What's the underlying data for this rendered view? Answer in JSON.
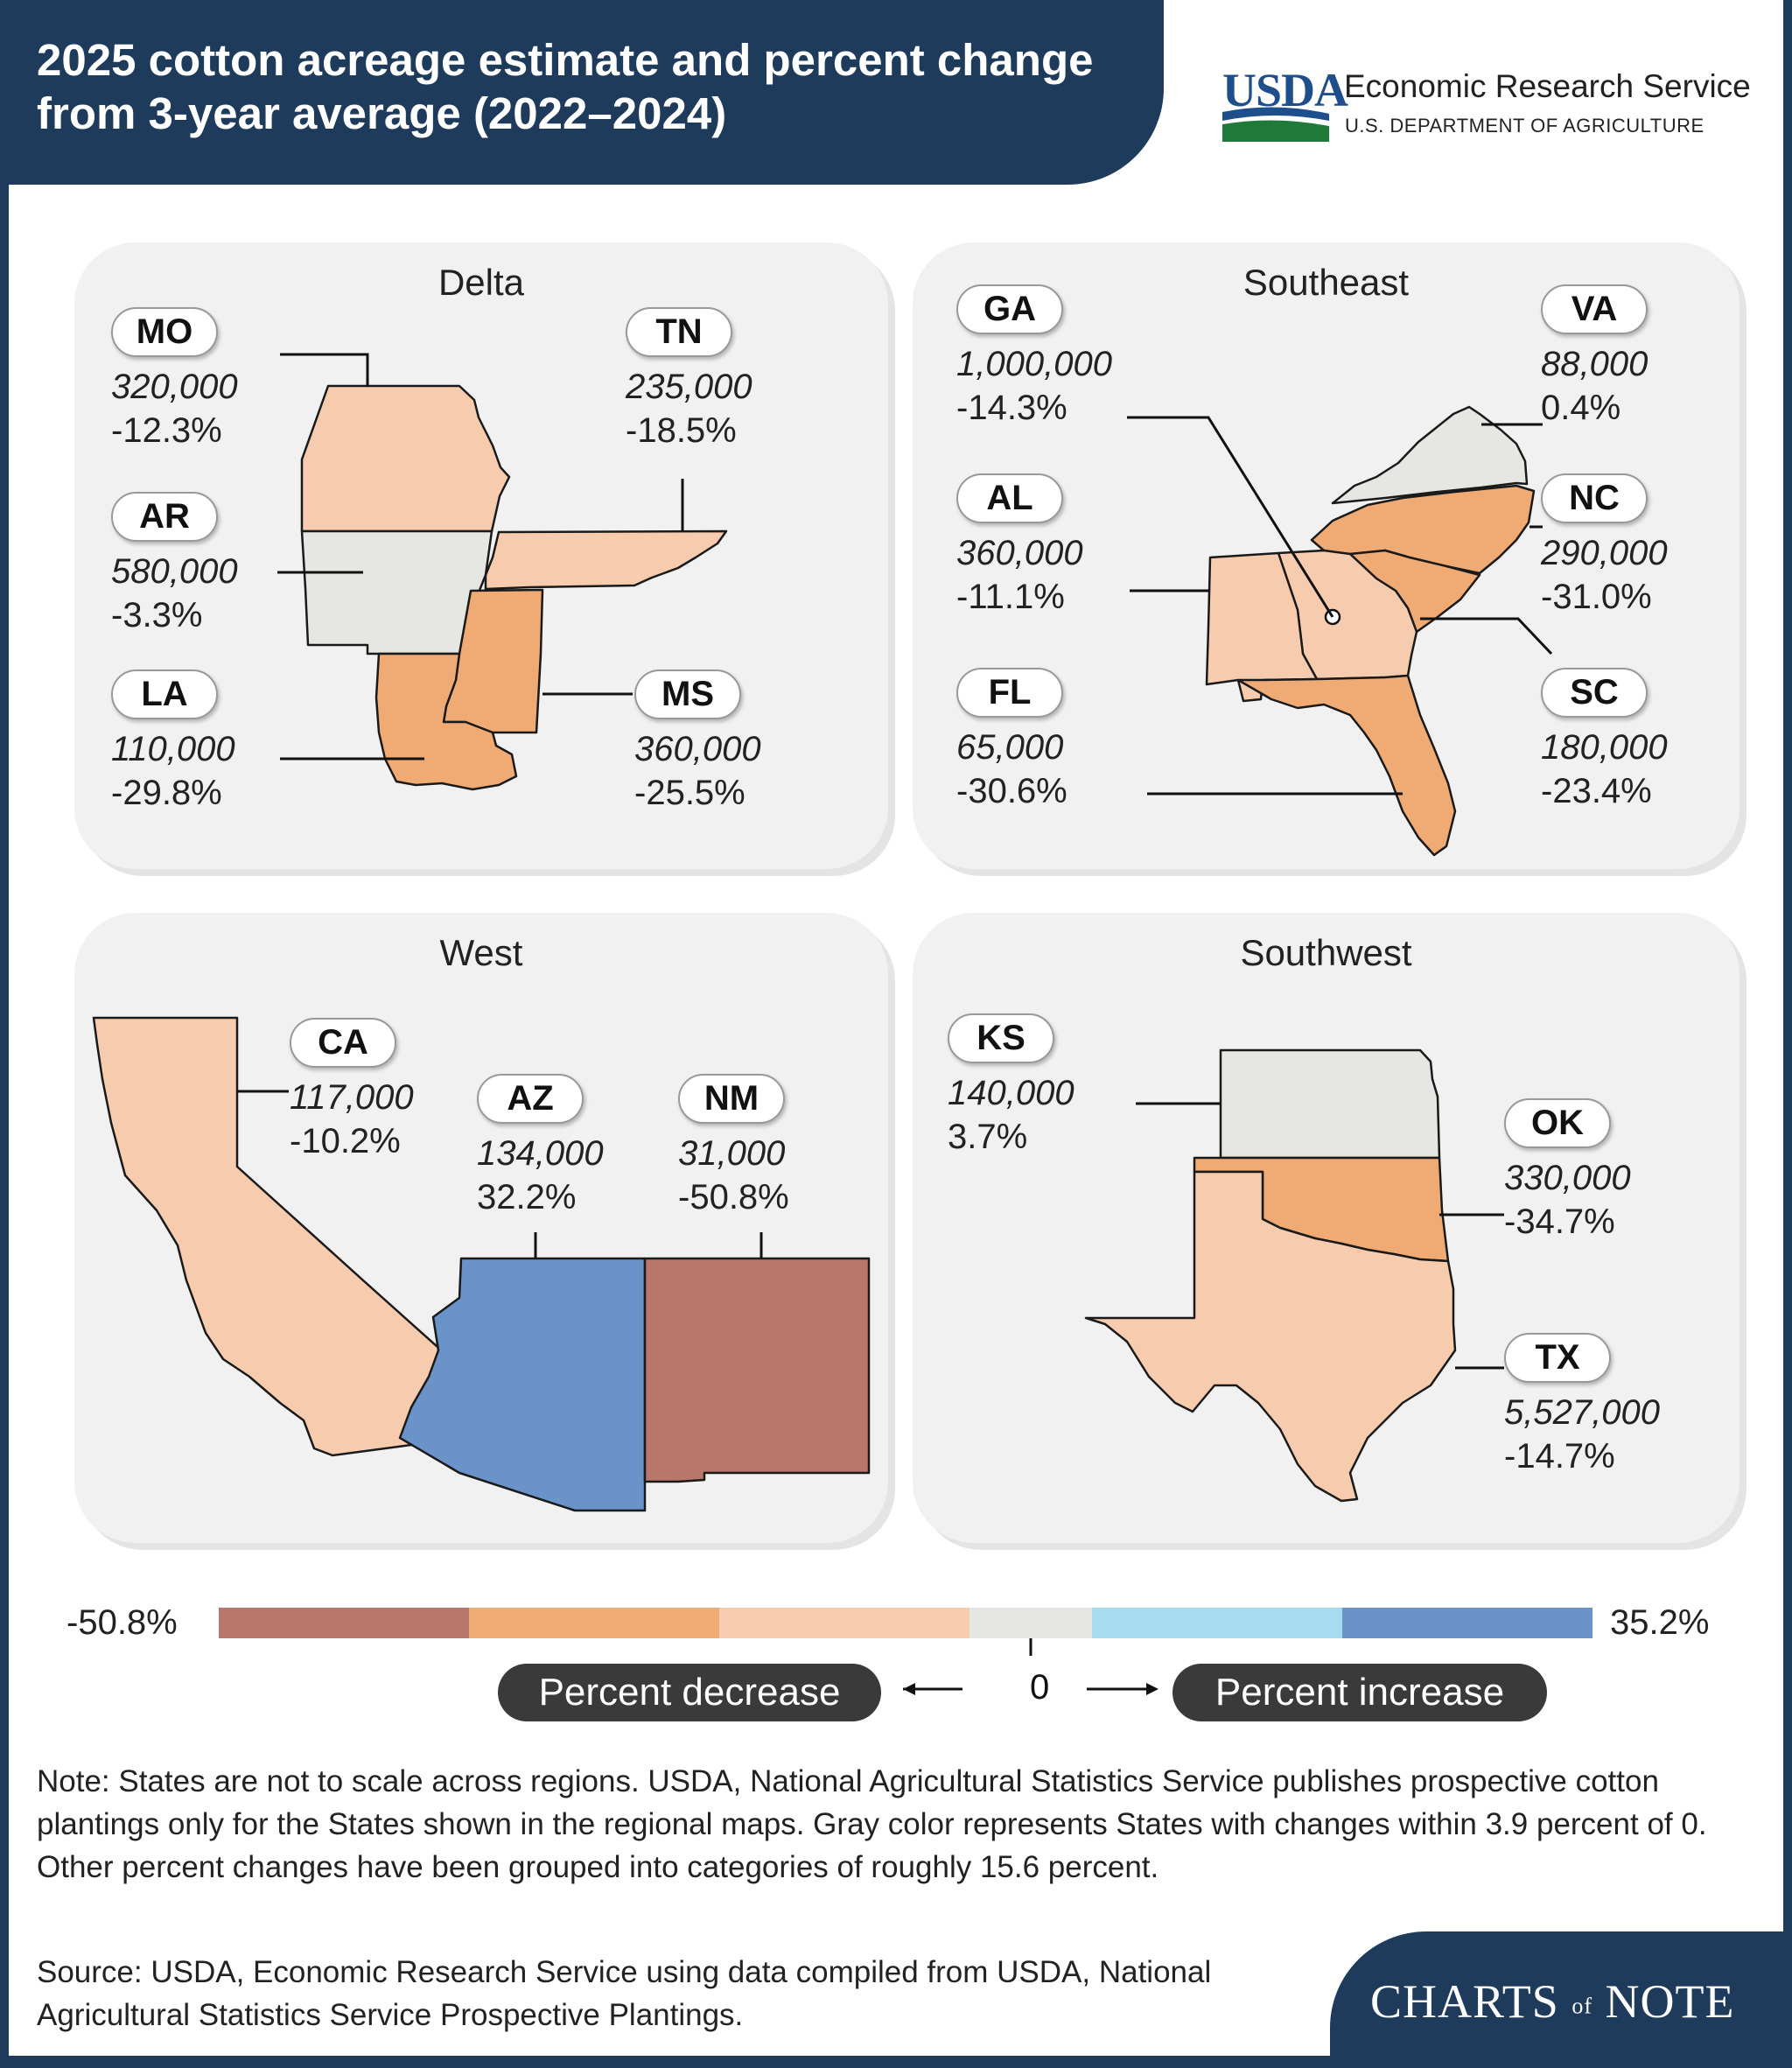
{
  "title": "2025 cotton acreage estimate and percent change from 3-year average (2022–2024)",
  "brand": {
    "usda": "USDA",
    "agency": "Economic Research Service",
    "department": "U.S. DEPARTMENT OF AGRICULTURE",
    "series": "CHARTS of NOTE",
    "series_main_1": "CHARTS",
    "series_of": "of",
    "series_main_2": "NOTE"
  },
  "colors": {
    "cat_-50.8": "#b8776a",
    "cat_-35": "#f0ab75",
    "cat_-19": "#f7ccae",
    "cat_0": "#e6e6e2",
    "cat_19": "#a6dcee",
    "cat_35": "#6a93c9",
    "header": "#1f3b5c"
  },
  "regions": {
    "delta": {
      "name": "Delta",
      "states": {
        "MO": {
          "abbr": "MO",
          "acreage": "320,000",
          "change": "-12.3%"
        },
        "TN": {
          "abbr": "TN",
          "acreage": "235,000",
          "change": "-18.5%"
        },
        "AR": {
          "abbr": "AR",
          "acreage": "580,000",
          "change": "-3.3%"
        },
        "LA": {
          "abbr": "LA",
          "acreage": "110,000",
          "change": "-29.8%"
        },
        "MS": {
          "abbr": "MS",
          "acreage": "360,000",
          "change": "-25.5%"
        }
      }
    },
    "southeast": {
      "name": "Southeast",
      "states": {
        "GA": {
          "abbr": "GA",
          "acreage": "1,000,000",
          "change": "-14.3%"
        },
        "VA": {
          "abbr": "VA",
          "acreage": "88,000",
          "change": "0.4%"
        },
        "AL": {
          "abbr": "AL",
          "acreage": "360,000",
          "change": "-11.1%"
        },
        "NC": {
          "abbr": "NC",
          "acreage": "290,000",
          "change": "-31.0%"
        },
        "FL": {
          "abbr": "FL",
          "acreage": "65,000",
          "change": "-30.6%"
        },
        "SC": {
          "abbr": "SC",
          "acreage": "180,000",
          "change": "-23.4%"
        }
      }
    },
    "west": {
      "name": "West",
      "states": {
        "CA": {
          "abbr": "CA",
          "acreage": "117,000",
          "change": "-10.2%"
        },
        "AZ": {
          "abbr": "AZ",
          "acreage": "134,000",
          "change": "32.2%"
        },
        "NM": {
          "abbr": "NM",
          "acreage": "31,000",
          "change": "-50.8%"
        }
      }
    },
    "southwest": {
      "name": "Southwest",
      "states": {
        "KS": {
          "abbr": "KS",
          "acreage": "140,000",
          "change": "3.7%"
        },
        "OK": {
          "abbr": "OK",
          "acreage": "330,000",
          "change": "-34.7%"
        },
        "TX": {
          "abbr": "TX",
          "acreage": "5,527,000",
          "change": "-14.7%"
        }
      }
    }
  },
  "legend": {
    "min_label": "-50.8%",
    "max_label": "35.2%",
    "zero_label": "0",
    "decrease_label": "Percent decrease",
    "increase_label": "Percent increase"
  },
  "note": "Note: States are not to scale across regions. USDA, National Agricultural Statistics Service publishes prospective cotton plantings only for the States shown in the regional maps. Gray color represents States with changes within 3.9 percent of 0. Other percent changes have been grouped into categories of roughly 15.6 percent.",
  "source": "Source: USDA, Economic Research Service using data compiled from USDA, National Agricultural Statistics Service Prospective Plantings."
}
